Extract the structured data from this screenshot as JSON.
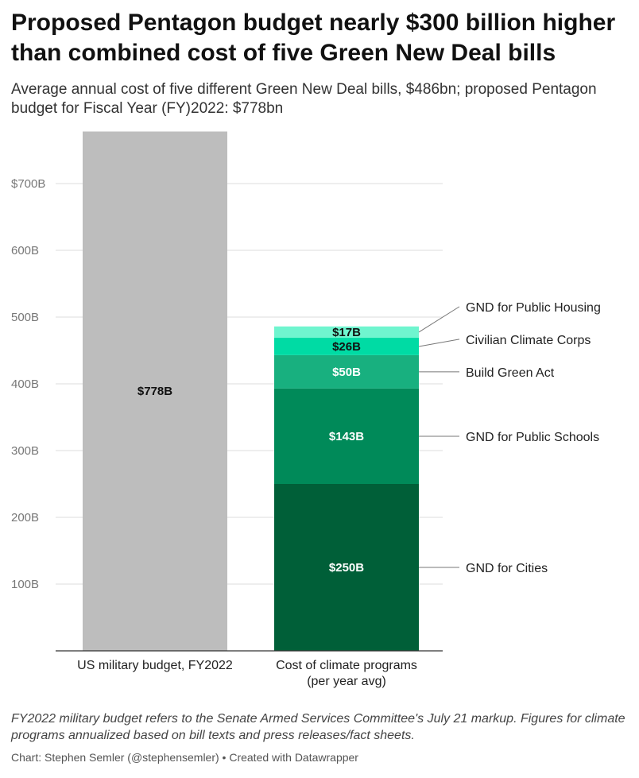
{
  "title": "Proposed Pentagon budget nearly $300 billion higher than combined cost of five Green New Deal bills",
  "subtitle": "Average annual cost of five different Green New Deal bills, $486bn; proposed Pentagon budget for Fiscal Year (FY)2022: $778bn",
  "notes": "FY2022 military budget refers to the Senate Armed Services Committee's July 21 markup. Figures for climate programs annualized based on bill texts and press releases/fact sheets.",
  "credit": "Chart: Stephen Semler (@stephensemler) • Created with Datawrapper",
  "chart_data": {
    "type": "bar",
    "stacked": true,
    "categories": [
      "US military budget, FY2022",
      "Cost of climate programs (per year avg)"
    ],
    "category_label_lines": [
      [
        "US military budget, FY2022"
      ],
      [
        "Cost of climate programs",
        "(per year avg)"
      ]
    ],
    "ylim": [
      0,
      778
    ],
    "yticks": [
      {
        "value": 100,
        "label": "100B"
      },
      {
        "value": 200,
        "label": "200B"
      },
      {
        "value": 300,
        "label": "300B"
      },
      {
        "value": 400,
        "label": "400B"
      },
      {
        "value": 500,
        "label": "500B"
      },
      {
        "value": 600,
        "label": "600B"
      },
      {
        "value": 700,
        "label": "$700B"
      }
    ],
    "grid": true,
    "bars": [
      {
        "category": "US military budget, FY2022",
        "segments": [
          {
            "name": "",
            "value": 778,
            "label": "$778B",
            "color": "#bdbdbd",
            "text_color": "#111111"
          }
        ]
      },
      {
        "category": "Cost of climate programs (per year avg)",
        "segments": [
          {
            "name": "GND for Cities",
            "value": 250,
            "label": "$250B",
            "color": "#005f38",
            "text_color": "#ffffff"
          },
          {
            "name": "GND for Public Schools",
            "value": 143,
            "label": "$143B",
            "color": "#008a59",
            "text_color": "#ffffff"
          },
          {
            "name": "Build Green Act",
            "value": 50,
            "label": "$50B",
            "color": "#18b07f",
            "text_color": "#ffffff"
          },
          {
            "name": "Civilian Climate Corps",
            "value": 26,
            "label": "$26B",
            "color": "#00dba4",
            "text_color": "#111111"
          },
          {
            "name": "GND for Public Housing",
            "value": 17,
            "label": "$17B",
            "color": "#6ff5cf",
            "text_color": "#111111"
          }
        ]
      }
    ],
    "colors": {
      "grid": "#dddddd",
      "axis": "#333333",
      "leader": "#777777"
    }
  }
}
